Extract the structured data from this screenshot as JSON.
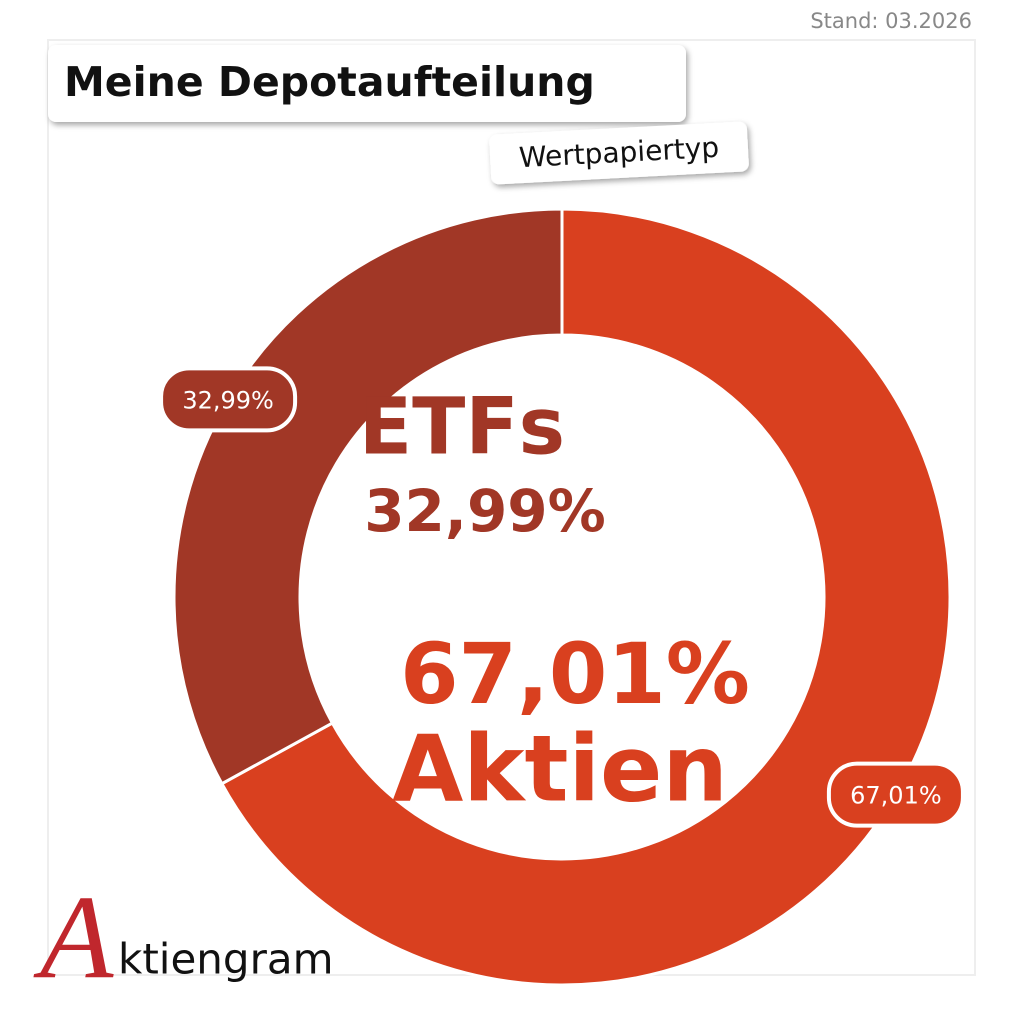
{
  "chart_data": {
    "type": "pie",
    "title": "Meine Depotaufteilung",
    "subtitle": "Wertpapiertyp",
    "date_note": "Stand: 03.2026",
    "categories": [
      "Aktien",
      "ETFs"
    ],
    "values": [
      67.01,
      32.99
    ],
    "value_labels": [
      "67,01%",
      "32,99%"
    ],
    "colors": [
      "#d9401f",
      "#a13726"
    ],
    "donut": true,
    "brand_initial": "A",
    "brand_rest": "ktiengram"
  }
}
